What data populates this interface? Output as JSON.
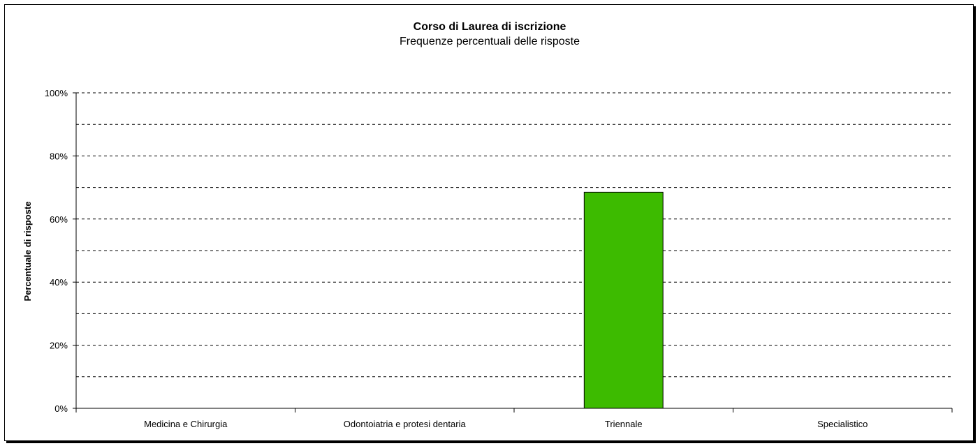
{
  "chart_data": {
    "type": "bar",
    "title": "Corso di Laurea di iscrizione",
    "subtitle": "Frequenze percentuali delle risposte",
    "xlabel": "",
    "ylabel": "Percentuale di risposte",
    "categories": [
      "Medicina e Chirurgia",
      "Odontoiatria e protesi dentaria",
      "Triennale",
      "Specialistico"
    ],
    "values": [
      0,
      0,
      68.5,
      0
    ],
    "ylim": [
      0,
      100
    ],
    "yticks": [
      0,
      20,
      40,
      60,
      80,
      100
    ],
    "ytick_labels": [
      "0%",
      "20%",
      "40%",
      "60%",
      "80%",
      "100%"
    ],
    "minor_gridlines": [
      10,
      30,
      50,
      70,
      90
    ],
    "grid": true,
    "legend": "none",
    "bar_color": "#3dbb00"
  }
}
